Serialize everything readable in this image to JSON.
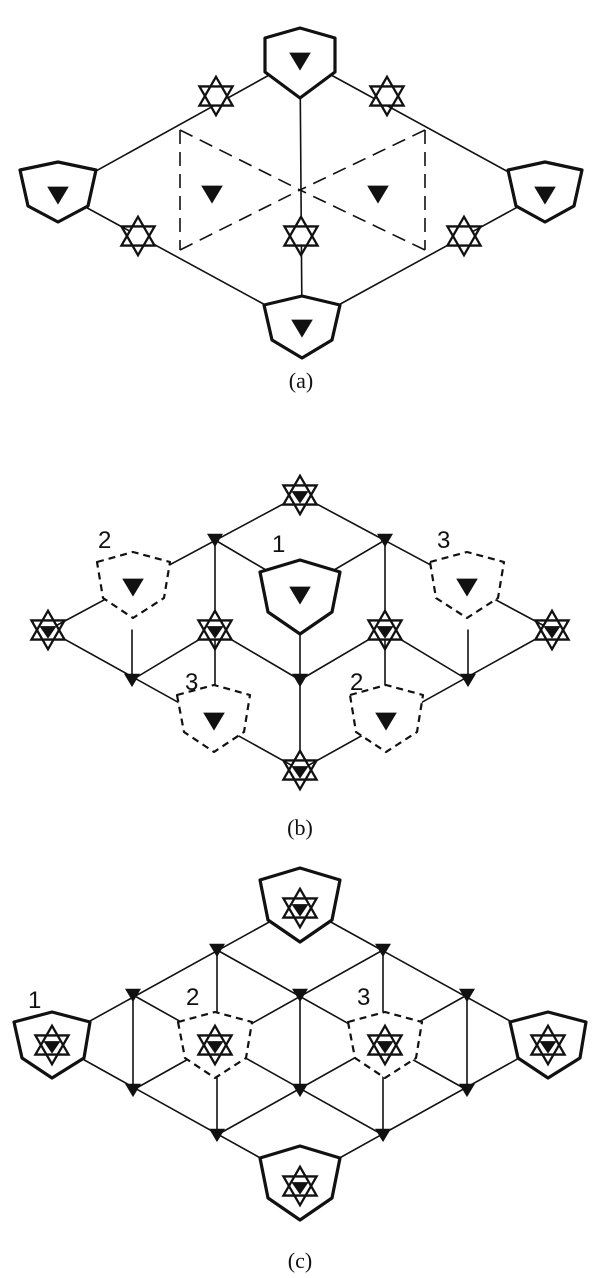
{
  "panels": [
    {
      "id": "a",
      "caption": "(a)",
      "labels": []
    },
    {
      "id": "b",
      "caption": "(b)",
      "labels": [
        "1",
        "2",
        "3",
        "3",
        "2"
      ]
    },
    {
      "id": "c",
      "caption": "(c)",
      "labels": [
        "1",
        "2",
        "3"
      ]
    }
  ],
  "colors": {
    "ink": "#111111",
    "paper": "#ffffff"
  },
  "icons": {
    "rotation_3fold": "filled-triangle-icon",
    "rotation_6fold": "star-of-david-icon",
    "site_symmetry_mark": "shield-icon"
  }
}
